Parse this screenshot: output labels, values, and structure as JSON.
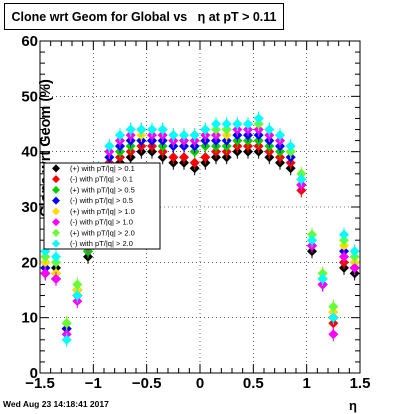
{
  "title": "Clone wrt Geom for Global vs   η at pT > 0.11",
  "ylabel": "Clone wrt Geom (%)",
  "xlabel": "η",
  "datestamp": "Wed Aug 23 14:18:41 2017",
  "chart_data": {
    "type": "scatter",
    "title": "Clone wrt Geom for Global vs   η at pT > 0.11",
    "xlabel": "η",
    "ylabel": "Clone wrt Geom (%)",
    "xlim": [
      -1.5,
      1.5
    ],
    "ylim": [
      0,
      60
    ],
    "grid": true,
    "legend_placement": "left-middle",
    "x_ticks": [
      "−1.5",
      "−1",
      "−0.5",
      "0",
      "0.5",
      "1",
      "1.5"
    ],
    "y_ticks": [
      "0",
      "10",
      "20",
      "30",
      "40",
      "50",
      "60"
    ],
    "series": [
      {
        "name": "(+) with pT/|q| > 0.1",
        "color": "#000000",
        "x": [
          -1.45,
          -1.35,
          -1.25,
          -1.15,
          -1.05,
          -0.95,
          -0.85,
          -0.75,
          -0.65,
          -0.55,
          -0.45,
          -0.35,
          -0.25,
          -0.15,
          -0.05,
          0.05,
          0.15,
          0.25,
          0.35,
          0.45,
          0.55,
          0.65,
          0.75,
          0.85,
          0.95,
          1.05,
          1.15,
          1.25,
          1.35,
          1.45
        ],
        "values": [
          18,
          19,
          8,
          15,
          21,
          33,
          37,
          38,
          39,
          40,
          40,
          39,
          38,
          38,
          37,
          38,
          39,
          39,
          40,
          40,
          40,
          39,
          38,
          37,
          34,
          22,
          16,
          10,
          19,
          18
        ]
      },
      {
        "name": "(-) with pT/|q| > 0.1",
        "color": "#ff0000",
        "x": [
          -1.45,
          -1.35,
          -1.25,
          -1.15,
          -1.05,
          -0.95,
          -0.85,
          -0.75,
          -0.65,
          -0.55,
          -0.45,
          -0.35,
          -0.25,
          -0.15,
          -0.05,
          0.05,
          0.15,
          0.25,
          0.35,
          0.45,
          0.55,
          0.65,
          0.75,
          0.85,
          0.95,
          1.05,
          1.15,
          1.25,
          1.35,
          1.45
        ],
        "values": [
          19,
          17,
          8,
          14,
          22,
          34,
          38,
          39,
          40,
          41,
          41,
          40,
          39,
          39,
          38,
          39,
          40,
          40,
          41,
          41,
          41,
          40,
          39,
          38,
          33,
          23,
          17,
          9,
          20,
          19
        ]
      },
      {
        "name": "(+) with pT/|q| > 0.5",
        "color": "#00cc00",
        "x": [
          -1.45,
          -1.35,
          -1.25,
          -1.15,
          -1.05,
          -0.95,
          -0.85,
          -0.75,
          -0.65,
          -0.55,
          -0.45,
          -0.35,
          -0.25,
          -0.15,
          -0.05,
          0.05,
          0.15,
          0.25,
          0.35,
          0.45,
          0.55,
          0.65,
          0.75,
          0.85,
          0.95,
          1.05,
          1.15,
          1.25,
          1.35,
          1.45
        ],
        "values": [
          20,
          18,
          9,
          15,
          22,
          35,
          39,
          40,
          41,
          42,
          42,
          41,
          41,
          41,
          40,
          41,
          41,
          41,
          42,
          42,
          42,
          41,
          40,
          39,
          35,
          24,
          17,
          11,
          21,
          20
        ]
      },
      {
        "name": "(-) with pT/|q| > 0.5",
        "color": "#0000ff",
        "x": [
          -1.45,
          -1.35,
          -1.25,
          -1.15,
          -1.05,
          -0.95,
          -0.85,
          -0.75,
          -0.65,
          -0.55,
          -0.45,
          -0.35,
          -0.25,
          -0.15,
          -0.05,
          0.05,
          0.15,
          0.25,
          0.35,
          0.45,
          0.55,
          0.65,
          0.75,
          0.85,
          0.95,
          1.05,
          1.15,
          1.25,
          1.35,
          1.45
        ],
        "values": [
          19,
          17,
          8,
          14,
          23,
          35,
          39,
          41,
          42,
          42,
          42,
          42,
          41,
          41,
          41,
          42,
          42,
          42,
          43,
          43,
          43,
          42,
          41,
          39,
          34,
          23,
          16,
          10,
          22,
          19
        ]
      },
      {
        "name": "(+) with pT/|q| > 1.0",
        "color": "#ffdd00",
        "x": [
          -1.45,
          -1.35,
          -1.25,
          -1.15,
          -1.05,
          -0.95,
          -0.85,
          -0.75,
          -0.65,
          -0.55,
          -0.45,
          -0.35,
          -0.25,
          -0.15,
          -0.05,
          0.05,
          0.15,
          0.25,
          0.35,
          0.45,
          0.55,
          0.65,
          0.75,
          0.85,
          0.95,
          1.05,
          1.15,
          1.25,
          1.35,
          1.45
        ],
        "values": [
          20,
          18,
          9,
          15,
          24,
          36,
          40,
          42,
          43,
          43,
          43,
          43,
          42,
          42,
          42,
          43,
          43,
          43,
          44,
          44,
          44,
          43,
          42,
          40,
          35,
          24,
          18,
          11,
          23,
          20
        ]
      },
      {
        "name": "(-) with pT/|q| > 1.0",
        "color": "#ff00ff",
        "x": [
          -1.45,
          -1.35,
          -1.25,
          -1.15,
          -1.05,
          -0.95,
          -0.85,
          -0.75,
          -0.65,
          -0.55,
          -0.45,
          -0.35,
          -0.25,
          -0.15,
          -0.05,
          0.05,
          0.15,
          0.25,
          0.35,
          0.45,
          0.55,
          0.65,
          0.75,
          0.85,
          0.95,
          1.05,
          1.15,
          1.25,
          1.35,
          1.45
        ],
        "values": [
          18,
          17,
          7,
          13,
          23,
          36,
          40,
          42,
          43,
          44,
          43,
          43,
          42,
          42,
          42,
          43,
          43,
          44,
          44,
          44,
          44,
          43,
          42,
          40,
          34,
          23,
          16,
          7,
          21,
          19
        ]
      },
      {
        "name": "(+) with pT/|q| > 2.0",
        "color": "#66ff33",
        "x": [
          -1.45,
          -1.35,
          -1.25,
          -1.15,
          -1.05,
          -0.95,
          -0.85,
          -0.75,
          -0.65,
          -0.55,
          -0.45,
          -0.35,
          -0.25,
          -0.15,
          -0.05,
          0.05,
          0.15,
          0.25,
          0.35,
          0.45,
          0.55,
          0.65,
          0.75,
          0.85,
          0.95,
          1.05,
          1.15,
          1.25,
          1.35,
          1.45
        ],
        "values": [
          21,
          20,
          9,
          16,
          24,
          37,
          41,
          43,
          44,
          44,
          44,
          44,
          43,
          43,
          43,
          44,
          44,
          44,
          45,
          45,
          45,
          44,
          43,
          40,
          36,
          25,
          18,
          12,
          24,
          21
        ]
      },
      {
        "name": "(-) with pT/|q| > 2.0",
        "color": "#00ffff",
        "x": [
          -1.45,
          -1.35,
          -1.25,
          -1.15,
          -1.05,
          -0.95,
          -0.85,
          -0.75,
          -0.65,
          -0.55,
          -0.45,
          -0.35,
          -0.25,
          -0.15,
          -0.05,
          0.05,
          0.15,
          0.25,
          0.35,
          0.45,
          0.55,
          0.65,
          0.75,
          0.85,
          0.95,
          1.05,
          1.15,
          1.25,
          1.35,
          1.45
        ],
        "values": [
          22,
          21,
          6,
          14,
          25,
          37,
          41,
          43,
          44,
          44,
          44,
          44,
          43,
          43,
          43,
          44,
          45,
          45,
          45,
          45,
          46,
          44,
          43,
          41,
          35,
          24,
          17,
          10,
          25,
          22
        ]
      }
    ]
  }
}
